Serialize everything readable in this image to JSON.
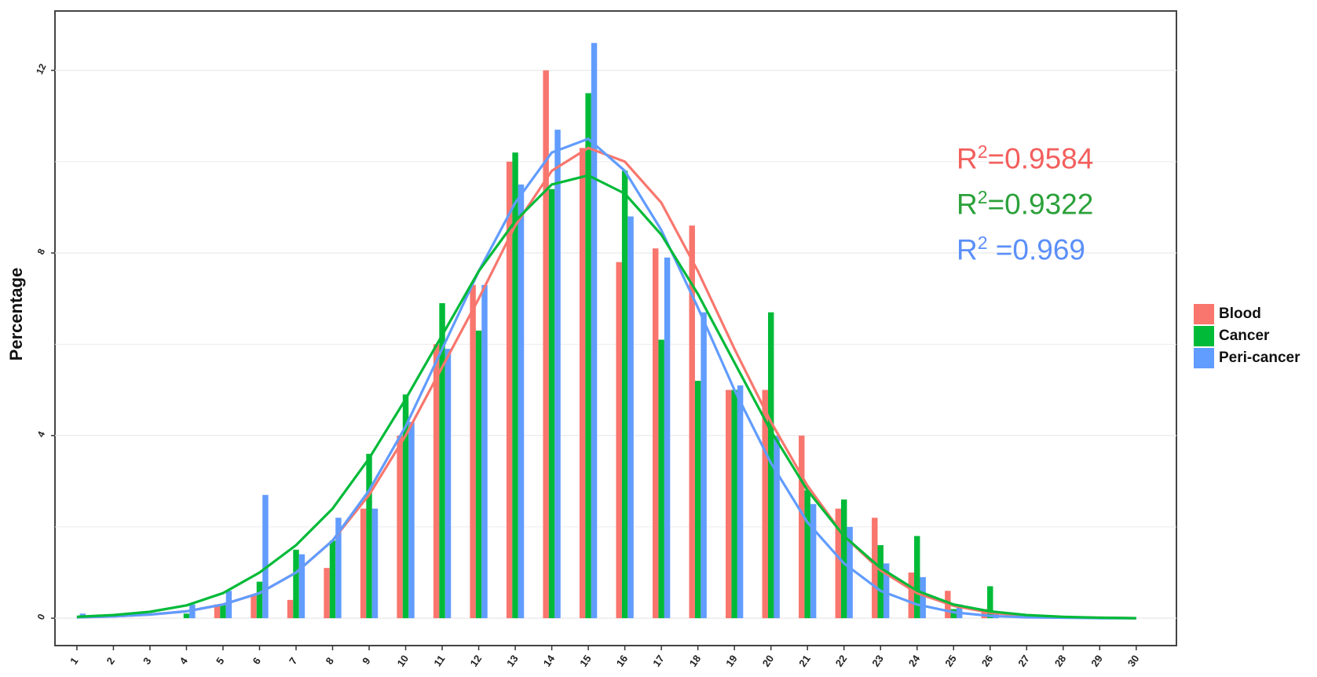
{
  "chart_data": {
    "type": "bar",
    "ylabel": "Percentage",
    "xlabel": "",
    "categories": [
      "1",
      "2",
      "3",
      "4",
      "5",
      "6",
      "7",
      "8",
      "9",
      "10",
      "11",
      "12",
      "13",
      "14",
      "15",
      "16",
      "17",
      "18",
      "19",
      "20",
      "21",
      "22",
      "23",
      "24",
      "25",
      "26",
      "27",
      "28",
      "29",
      "30"
    ],
    "ylim": [
      -0.6,
      13.3
    ],
    "yticks": [
      0,
      4,
      8,
      12
    ],
    "grid": true,
    "legend_position": "right",
    "series": [
      {
        "name": "Blood",
        "color": "#F8766D",
        "values": [
          0,
          0,
          0,
          0,
          0.3,
          0.5,
          0.4,
          1.1,
          2.4,
          4.0,
          6.0,
          7.3,
          10.0,
          12.0,
          10.3,
          7.8,
          8.1,
          8.6,
          5.0,
          5.0,
          4.0,
          2.4,
          2.2,
          1.0,
          0.6,
          0.2,
          0,
          0,
          0,
          0
        ],
        "fit": [
          0.02,
          0.04,
          0.08,
          0.15,
          0.3,
          0.55,
          1.0,
          1.7,
          2.7,
          4.0,
          5.5,
          7.0,
          8.6,
          9.8,
          10.3,
          10.0,
          9.1,
          7.6,
          5.9,
          4.3,
          2.9,
          1.8,
          1.05,
          0.55,
          0.27,
          0.12,
          0.05,
          0.02,
          0.01,
          0.0
        ]
      },
      {
        "name": "Cancer",
        "color": "#00BA38",
        "values": [
          0,
          0,
          0,
          0.1,
          0.3,
          0.8,
          1.5,
          1.7,
          3.6,
          4.9,
          6.9,
          6.3,
          10.2,
          9.4,
          11.5,
          9.8,
          6.1,
          5.2,
          5.0,
          6.7,
          2.8,
          2.6,
          1.6,
          1.8,
          0.2,
          0.7,
          0,
          0,
          0,
          0
        ],
        "fit": [
          0.03,
          0.07,
          0.14,
          0.28,
          0.55,
          1.0,
          1.6,
          2.4,
          3.5,
          4.8,
          6.2,
          7.6,
          8.7,
          9.5,
          9.7,
          9.3,
          8.4,
          7.1,
          5.6,
          4.1,
          2.8,
          1.8,
          1.1,
          0.6,
          0.3,
          0.15,
          0.07,
          0.03,
          0.01,
          0.0
        ]
      },
      {
        "name": "Peri-cancer",
        "color": "#619CFF",
        "values": [
          0.1,
          0,
          0,
          0.3,
          0.6,
          2.7,
          1.4,
          2.2,
          2.4,
          4.3,
          5.9,
          7.3,
          9.5,
          10.7,
          12.6,
          8.8,
          7.9,
          6.7,
          5.1,
          4.0,
          2.5,
          2.0,
          1.2,
          0.9,
          0.3,
          0.1,
          0,
          0,
          0,
          0
        ],
        "fit": [
          0.02,
          0.04,
          0.08,
          0.15,
          0.3,
          0.55,
          1.0,
          1.7,
          2.8,
          4.2,
          5.9,
          7.6,
          9.1,
          10.2,
          10.5,
          9.8,
          8.5,
          6.8,
          5.0,
          3.4,
          2.1,
          1.2,
          0.6,
          0.3,
          0.13,
          0.05,
          0.02,
          0.01,
          0.0,
          0.0
        ]
      }
    ],
    "annotations": [
      {
        "series": "Blood",
        "label": "R",
        "sup": "2",
        "text": "=0.9584",
        "color": "#F25F5C"
      },
      {
        "series": "Cancer",
        "label": "R",
        "sup": "2",
        "text": "=0.9322",
        "color": "#2BA13A"
      },
      {
        "series": "Peri-cancer",
        "label": "R",
        "sup": "2",
        "text": " =0.969",
        "color": "#5B8FF9"
      }
    ]
  }
}
